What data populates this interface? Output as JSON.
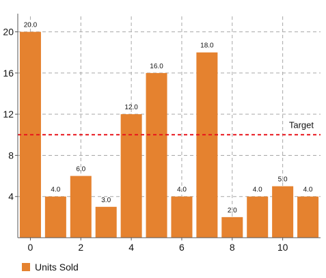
{
  "chart_data": {
    "type": "bar",
    "x": [
      0,
      1,
      2,
      3,
      4,
      5,
      6,
      7,
      8,
      9,
      10,
      11
    ],
    "series": [
      {
        "name": "Units Sold",
        "values": [
          20.0,
          4.0,
          6.0,
          3.0,
          12.0,
          16.0,
          4.0,
          18.0,
          2.0,
          4.0,
          5.0,
          4.0
        ],
        "value_labels": [
          "20.0",
          "4.0",
          "6.0",
          "3.0",
          "12.0",
          "16.0",
          "4.0",
          "18.0",
          "2.0",
          "4.0",
          "5.0",
          "4.0"
        ],
        "color": "#e5822f"
      }
    ],
    "xticks": [
      0,
      2,
      4,
      6,
      8,
      10
    ],
    "xtick_labels": [
      "0",
      "2",
      "4",
      "6",
      "8",
      "10"
    ],
    "yticks": [
      4,
      8,
      12,
      16,
      20
    ],
    "ytick_labels": [
      "4",
      "8",
      "12",
      "16",
      "20"
    ],
    "xlim": [
      -0.5,
      11.5
    ],
    "ylim": [
      0,
      21.5
    ],
    "reference_line": {
      "label": "Target",
      "value": 10,
      "color": "#e8141b",
      "style": "dashed"
    },
    "title": "",
    "xlabel": "",
    "ylabel": "",
    "grid": true,
    "legend_position": "bottom-left"
  }
}
